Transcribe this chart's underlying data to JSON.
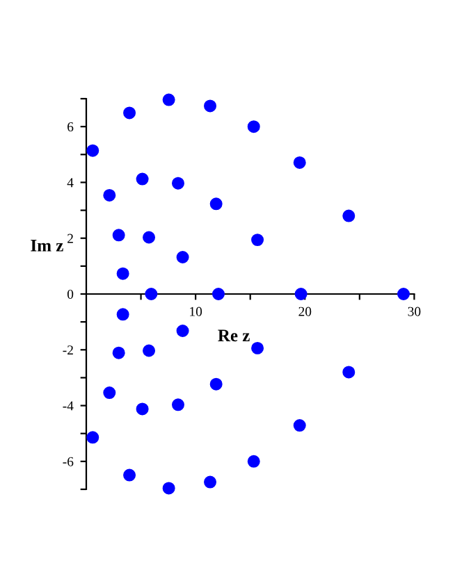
{
  "chart_data": {
    "type": "scatter",
    "xlabel": "Re z",
    "ylabel": "Im z",
    "x": [
      0.59,
      3.95,
      7.55,
      11.33,
      15.32,
      19.52,
      24.01,
      29.02,
      24.01,
      19.52,
      15.32,
      11.33,
      7.55,
      3.95,
      0.59,
      2.12,
      5.13,
      8.4,
      11.88,
      15.66,
      19.64,
      15.66,
      11.88,
      8.4,
      5.13,
      2.12,
      2.97,
      5.73,
      8.82,
      12.09,
      8.82,
      5.73,
      2.97,
      3.35,
      5.94,
      3.35
    ],
    "series": [
      {
        "color": "#0000ff",
        "values": [
          5.14,
          6.49,
          6.96,
          6.74,
          6.0,
          4.71,
          2.8,
          0,
          -2.8,
          -4.71,
          -6.0,
          -6.74,
          -6.96,
          -6.49,
          -5.14,
          3.54,
          4.12,
          3.97,
          3.23,
          1.94,
          0,
          -1.94,
          -3.23,
          -3.97,
          -4.12,
          -3.54,
          2.11,
          2.03,
          1.32,
          0,
          -1.32,
          -2.03,
          -2.11,
          0.73,
          0,
          -0.73
        ]
      }
    ],
    "marker": "circle",
    "grid": false,
    "legend": false,
    "xlim": [
      0,
      30
    ],
    "ylim": [
      -7,
      7
    ],
    "xticks": [
      {
        "value": 5,
        "label": null
      },
      10,
      {
        "value": 15,
        "label": null
      },
      20,
      {
        "value": 25,
        "label": null
      },
      30
    ],
    "yticks": [
      {
        "value": -7,
        "label": null
      },
      -6,
      {
        "value": -5,
        "label": null
      },
      -4,
      {
        "value": -3,
        "label": null
      },
      -2,
      {
        "value": -1,
        "label": null
      },
      0,
      {
        "value": 1,
        "label": null
      },
      2,
      {
        "value": 3,
        "label": null
      },
      4,
      {
        "value": 5,
        "label": null
      },
      6,
      {
        "value": 7,
        "label": null
      }
    ]
  }
}
